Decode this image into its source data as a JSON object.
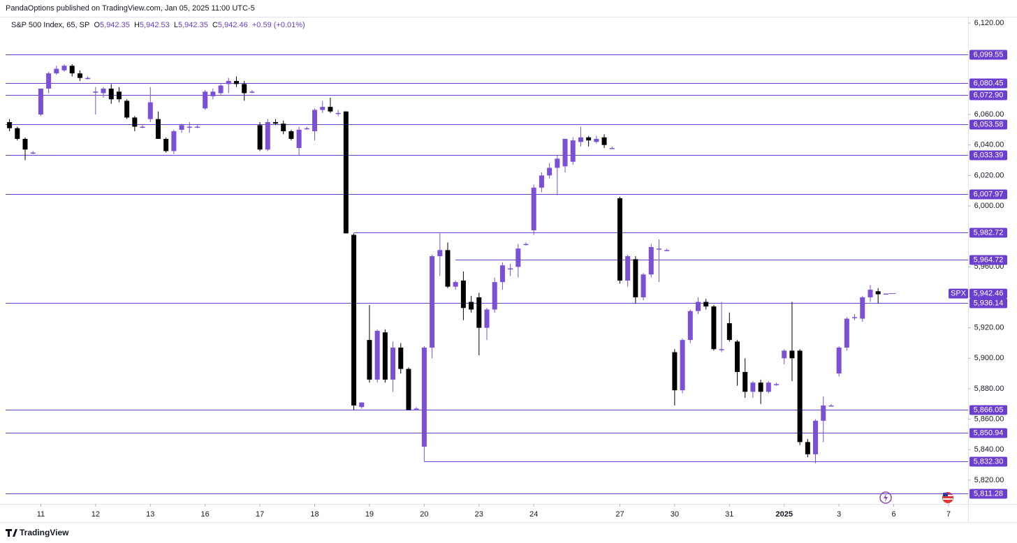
{
  "chart_data": {
    "type": "candlestick",
    "attribution": "PandaOptions published on TradingView.com, Jan 05, 2025 11:00 UTC-5",
    "legend": {
      "symbol": "S&P 500 Index, 65, SP",
      "o_key": "O",
      "o": "5,942.35",
      "h_key": "H",
      "h": "5,942.53",
      "l_key": "L",
      "l": "5,942.35",
      "c_key": "C",
      "c": "5,942.46",
      "change": "+0.59 (+0.01%)"
    },
    "brand": "TradingView",
    "up_color": "#7b4fd6",
    "down_color": "#000000",
    "level_color": "#6a3fd0",
    "xlim": [
      -0.5,
      122.5
    ],
    "ylim": [
      5804.4,
      6123.7
    ],
    "xticks": [
      {
        "value": 4,
        "label": "11"
      },
      {
        "value": 11,
        "label": "12"
      },
      {
        "value": 18,
        "label": "13"
      },
      {
        "value": 25,
        "label": "16"
      },
      {
        "value": 32,
        "label": "17"
      },
      {
        "value": 39,
        "label": "18"
      },
      {
        "value": 46,
        "label": "19"
      },
      {
        "value": 53,
        "label": "20"
      },
      {
        "value": 60,
        "label": "23"
      },
      {
        "value": 67,
        "label": "24"
      },
      {
        "value": 78,
        "label": "27"
      },
      {
        "value": 85,
        "label": "30"
      },
      {
        "value": 92,
        "label": "31"
      },
      {
        "value": 99,
        "label": "2025"
      },
      {
        "value": 106,
        "label": "3"
      },
      {
        "value": 113,
        "label": "6"
      },
      {
        "value": 120,
        "label": "7"
      }
    ],
    "yticks": [
      {
        "value": 6120,
        "label": "6,120.00"
      },
      {
        "value": 6060,
        "label": "6,060.00"
      },
      {
        "value": 6040,
        "label": "6,040.00"
      },
      {
        "value": 6020,
        "label": "6,020.00"
      },
      {
        "value": 6000,
        "label": "6,000.00"
      },
      {
        "value": 5960,
        "label": "5,960.00"
      },
      {
        "value": 5920,
        "label": "5,920.00"
      },
      {
        "value": 5900,
        "label": "5,900.00"
      },
      {
        "value": 5880,
        "label": "5,880.00"
      },
      {
        "value": 5860,
        "label": "5,860.00"
      },
      {
        "value": 5840,
        "label": "5,840.00"
      },
      {
        "value": 5820,
        "label": "5,820.00"
      }
    ],
    "levels": [
      {
        "value": 6099.55,
        "label": "6,099.55"
      },
      {
        "value": 6080.45,
        "label": "6,080.45"
      },
      {
        "value": 6072.9,
        "label": "6,072.90"
      },
      {
        "value": 6053.58,
        "label": "6,053.58"
      },
      {
        "value": 6033.39,
        "label": "6,033.39"
      },
      {
        "value": 6007.97,
        "label": "6,007.97"
      },
      {
        "value": 5982.72,
        "label": "5,982.72",
        "from": 44
      },
      {
        "value": 5964.72,
        "label": "5,964.72",
        "from": 57
      },
      {
        "value": 5936.14,
        "label": "5,936.14"
      },
      {
        "value": 5866.05,
        "label": "5,866.05"
      },
      {
        "value": 5850.94,
        "label": "5,850.94"
      },
      {
        "value": 5832.3,
        "label": "5,832.30",
        "from": 53
      },
      {
        "value": 5811.28,
        "label": "5,811.28"
      }
    ],
    "last_price": {
      "name": "SPX",
      "value": 5942.46,
      "label": "5,942.46"
    },
    "x": [
      0,
      1,
      2,
      3,
      4,
      5,
      6,
      7,
      8,
      9,
      10,
      11,
      12,
      13,
      14,
      15,
      16,
      17,
      18,
      19,
      20,
      21,
      22,
      23,
      24,
      25,
      26,
      27,
      28,
      29,
      30,
      31,
      32,
      33,
      34,
      35,
      36,
      37,
      38,
      39,
      40,
      41,
      42,
      43,
      44,
      45,
      46,
      47,
      48,
      49,
      50,
      51,
      52,
      53,
      54,
      55,
      56,
      57,
      58,
      59,
      60,
      61,
      62,
      63,
      64,
      65,
      66,
      67,
      68,
      69,
      70,
      71,
      72,
      73,
      74,
      75,
      76,
      77,
      78,
      79,
      80,
      81,
      82,
      83,
      84,
      85,
      86,
      87,
      88,
      89,
      90,
      91,
      92,
      93,
      94,
      95,
      96,
      97,
      98,
      99,
      100,
      101,
      102,
      103,
      104,
      105,
      106,
      107,
      108,
      109,
      110,
      111,
      112
    ],
    "open": [
      6055,
      6051,
      6044,
      6035,
      6060,
      6077,
      6087,
      6089,
      6092,
      6087,
      6084,
      6075,
      6074,
      6077,
      6075,
      6069,
      6058,
      6052,
      6057,
      6057,
      6044,
      6036,
      6050,
      6052,
      6052,
      6064,
      6072,
      6074,
      6080,
      6082,
      6080,
      6075,
      6053,
      6037,
      6055,
      6054,
      6049,
      6038,
      6051,
      6049,
      6063,
      6065,
      6061,
      6062,
      5981,
      5868,
      5912,
      5886,
      5917,
      5886,
      5907,
      5893,
      5867,
      5842,
      5907,
      5967,
      5971,
      5947,
      5951,
      5937,
      5940,
      5920,
      5932,
      5950,
      5959,
      5960,
      5975,
      5984,
      6012,
      6020,
      6025,
      6026,
      6029,
      6042,
      6045,
      6042,
      6045,
      6038,
      6005,
      5951,
      5965,
      5940,
      5955,
      5972,
      5971,
      5904,
      5879,
      5912,
      5931,
      5937,
      5934,
      5906,
      5923,
      5911,
      5891,
      5878,
      5884,
      5878,
      5883,
      5900,
      5905,
      5905,
      5845,
      5837,
      5859,
      5869,
      5890,
      5907,
      5927,
      5926,
      5940,
      5944,
      5942.35
    ],
    "high": [
      6057,
      6052,
      6045,
      6036,
      6077,
      6088,
      6092,
      6093,
      6093,
      6089,
      6085,
      6078,
      6078,
      6080,
      6078,
      6070,
      6059,
      6053,
      6078,
      6062,
      6045,
      6050,
      6054,
      6055,
      6053,
      6076,
      6077,
      6080,
      6084,
      6085,
      6082,
      6076,
      6055,
      6057,
      6057,
      6056,
      6050,
      6052,
      6052,
      6064,
      6069,
      6071,
      6063,
      6062,
      5982,
      5871,
      5935,
      5919,
      5919,
      5911,
      5910,
      5894,
      5868,
      5908,
      5968,
      5982,
      5976,
      5951,
      5957,
      5941,
      5943,
      5933,
      5953,
      5963,
      5962,
      5975,
      5976,
      6014,
      6022,
      6028,
      6033,
      6044,
      6045,
      6052,
      6046,
      6046,
      6047,
      6039,
      6006,
      5968,
      5967,
      5956,
      5975,
      5978,
      5972,
      5906,
      5913,
      5932,
      5940,
      5939,
      5935,
      5937,
      5930,
      5912,
      5900,
      5885,
      5886,
      5885,
      5884,
      5906,
      5937,
      5906,
      5847,
      5860,
      5875,
      5870,
      5908,
      5927,
      5929,
      5941,
      5948,
      5946,
      5942.53
    ],
    "low": [
      6049,
      6043,
      6030,
      6034,
      6059,
      6074,
      6086,
      6088,
      6085,
      6082,
      6083,
      6060,
      6071,
      6067,
      6068,
      6057,
      6049,
      6051,
      6055,
      6044,
      6035,
      6034,
      6048,
      6048,
      6051,
      6063,
      6070,
      6073,
      6074,
      6078,
      6069,
      6074,
      6036,
      6036,
      6053,
      6047,
      6043,
      6033,
      6050,
      6043,
      6061,
      6061,
      6059,
      5982,
      5866,
      5867,
      5884,
      5884,
      5884,
      5878,
      5890,
      5866,
      5866,
      5832.3,
      5900,
      5954,
      5946,
      5945,
      5925,
      5930,
      5902,
      5912,
      5930,
      5945,
      5954,
      5953,
      5974,
      5981,
      6009,
      6018,
      6007,
      6022,
      6027,
      6039,
      6039,
      6041,
      6038,
      6038,
      5949,
      5947,
      5936,
      5938,
      5953,
      5950,
      5971,
      5869,
      5877,
      5910,
      5929,
      5932,
      5905,
      5904,
      5911,
      5882,
      5874,
      5874,
      5870,
      5877,
      5882,
      5896,
      5885,
      5843,
      5835,
      5831,
      5845,
      5869,
      5888,
      5905,
      5925,
      5924,
      5937,
      5936,
      5942.35
    ],
    "close": [
      6051,
      6044,
      6037,
      6035,
      6077,
      6087,
      6090,
      6092,
      6087,
      6084,
      6084,
      6075,
      6077,
      6070,
      6070,
      6058,
      6052,
      6052,
      6068,
      6044,
      6036,
      6049,
      6053,
      6052,
      6052,
      6075,
      6075,
      6079,
      6082,
      6080,
      6074,
      6075,
      6037,
      6055,
      6054,
      6049,
      6044,
      6050,
      6051,
      6063,
      6065,
      6062,
      6061,
      5982,
      5869,
      5871,
      5886,
      5918,
      5886,
      5907,
      5893,
      5866,
      5867,
      5907,
      5967,
      5971,
      5947,
      5950,
      5933,
      5932,
      5920,
      5932,
      5950,
      5961,
      5959,
      5972,
      5975,
      6012,
      6020,
      6025,
      6031,
      6044,
      6043,
      6045,
      6043,
      6044,
      6040,
      6038,
      5951,
      5967,
      5940,
      5955,
      5973,
      5972,
      5971,
      5879,
      5912,
      5931,
      5937,
      5934,
      5906,
      5906,
      5912,
      5891,
      5878,
      5884,
      5878,
      5884,
      5883,
      5905,
      5900,
      5845,
      5837,
      5859,
      5869,
      5869,
      5907,
      5926,
      5927,
      5940,
      5945,
      5942,
      5942.46
    ]
  }
}
